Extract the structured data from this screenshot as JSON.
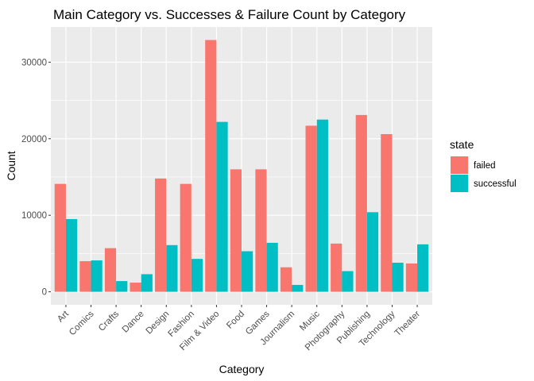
{
  "chart_data": {
    "type": "bar",
    "title": "Main Category vs. Successes & Failure Count by Category",
    "xlabel": "Category",
    "ylabel": "Count",
    "categories": [
      "Art",
      "Comics",
      "Crafts",
      "Dance",
      "Design",
      "Fashion",
      "Film & Video",
      "Food",
      "Games",
      "Journalism",
      "Music",
      "Photography",
      "Publishing",
      "Technology",
      "Theater"
    ],
    "series": [
      {
        "name": "failed",
        "color": "#F8766D",
        "values": [
          14100,
          4000,
          5700,
          1200,
          14800,
          14100,
          32900,
          16000,
          16000,
          3200,
          21700,
          6300,
          23100,
          20600,
          3700
        ]
      },
      {
        "name": "successful",
        "color": "#00BFC4",
        "values": [
          9500,
          4100,
          1400,
          2300,
          6100,
          4300,
          22200,
          5300,
          6400,
          900,
          22500,
          2700,
          10400,
          3800,
          6200
        ]
      }
    ],
    "yticks": [
      0,
      10000,
      20000,
      30000
    ],
    "ylim": [
      -1700,
      34600
    ],
    "grid": true,
    "legend": {
      "title": "state",
      "position": "right"
    }
  }
}
